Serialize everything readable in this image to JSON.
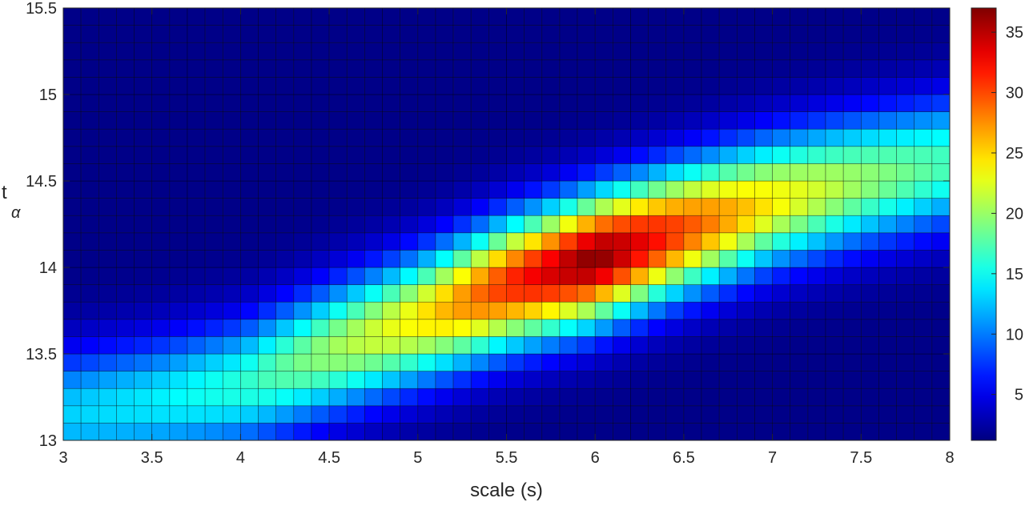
{
  "chart_data": {
    "type": "heatmap",
    "title": "",
    "xlabel": "scale (s)",
    "ylabel_main": "t",
    "ylabel_sub": "α",
    "xlim": [
      3,
      8
    ],
    "ylim": [
      13,
      15.5
    ],
    "x_ticks": [
      3,
      3.5,
      4,
      4.5,
      5,
      5.5,
      6,
      6.5,
      7,
      7.5,
      8
    ],
    "x_tick_labels": [
      "3",
      "3.5",
      "4",
      "4.5",
      "5",
      "5.5",
      "6",
      "6.5",
      "7",
      "7.5",
      "8"
    ],
    "y_ticks": [
      13,
      13.5,
      14,
      14.5,
      15,
      15.5
    ],
    "y_tick_labels": [
      "13",
      "13.5",
      "14",
      "14.5",
      "15",
      "15.5"
    ],
    "x_cells": 50,
    "y_cells": 25,
    "x_step": 0.1,
    "y_step": 0.1,
    "colorbar": {
      "colormap": "jet",
      "range": [
        1.2,
        37
      ],
      "ticks": [
        5,
        10,
        15,
        20,
        25,
        30,
        35
      ],
      "tick_labels": [
        "5",
        "10",
        "15",
        "20",
        "25",
        "30",
        "35"
      ]
    },
    "peak_ridge": [
      {
        "scale": 3.0,
        "t_alpha": 13.15,
        "value": 13
      },
      {
        "scale": 3.5,
        "t_alpha": 13.22,
        "value": 14
      },
      {
        "scale": 4.0,
        "t_alpha": 13.32,
        "value": 16
      },
      {
        "scale": 4.5,
        "t_alpha": 13.52,
        "value": 20
      },
      {
        "scale": 5.0,
        "t_alpha": 13.7,
        "value": 24
      },
      {
        "scale": 5.5,
        "t_alpha": 13.9,
        "value": 31
      },
      {
        "scale": 6.0,
        "t_alpha": 14.05,
        "value": 37
      },
      {
        "scale": 6.5,
        "t_alpha": 14.22,
        "value": 30
      },
      {
        "scale": 7.0,
        "t_alpha": 14.38,
        "value": 24
      },
      {
        "scale": 7.5,
        "t_alpha": 14.5,
        "value": 20
      },
      {
        "scale": 8.0,
        "t_alpha": 14.6,
        "value": 17
      }
    ],
    "background_value": 1.5,
    "ridge_width_t": 0.26
  }
}
